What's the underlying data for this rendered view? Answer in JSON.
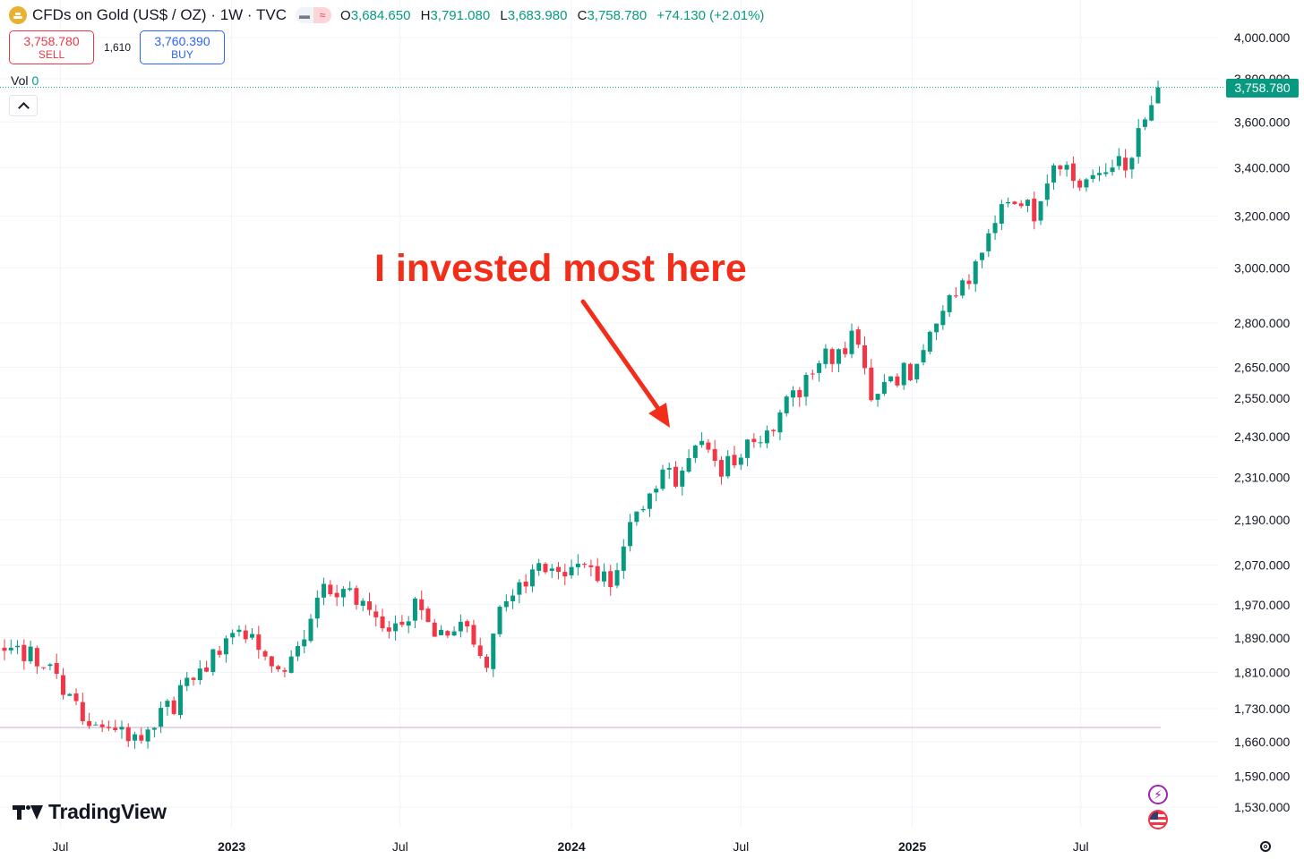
{
  "header": {
    "title": "CFDs on Gold (US$ / OZ) · 1W · TVC",
    "pill_left": "▬",
    "pill_right": "≈",
    "ohlc": [
      {
        "key": "O",
        "value": "3,684.650"
      },
      {
        "key": "H",
        "value": "3,791.080"
      },
      {
        "key": "L",
        "value": "3,683.980"
      },
      {
        "key": "C",
        "value": "3,758.780"
      }
    ],
    "change": "+74.130 (+2.01%)"
  },
  "trade": {
    "sell_price": "3,758.780",
    "sell_label": "SELL",
    "spread": "1,610",
    "buy_price": "3,760.390",
    "buy_label": "BUY"
  },
  "volume": {
    "label": "Vol",
    "value": "0"
  },
  "price_tag": "3,758.780",
  "annotation": "I invested most here",
  "logo_text": "TradingView",
  "colors": {
    "up": "#089981",
    "down": "#f23645",
    "annotation": "#f22e1a",
    "grid": "#f0f3fa"
  },
  "icons": {
    "collapse": "chevron-up-icon",
    "event1": "lightning-icon",
    "event2": "us-flag-icon",
    "settings": "gear-icon"
  },
  "chart_data": {
    "type": "candlestick",
    "interval": "1W",
    "scale": "log",
    "ylim": [
      1500,
      4250
    ],
    "y_ticks": [
      "4,000.000",
      "3,800.000",
      "3,600.000",
      "3,400.000",
      "3,200.000",
      "3,000.000",
      "2,800.000",
      "2,650.000",
      "2,550.000",
      "2,430.000",
      "2,310.000",
      "2,190.000",
      "2,070.000",
      "1,970.000",
      "1,890.000",
      "1,810.000",
      "1,730.000",
      "1,660.000",
      "1,590.000",
      "1,530.000"
    ],
    "y_tick_values": [
      4000,
      3800,
      3600,
      3400,
      3200,
      3000,
      2800,
      2650,
      2550,
      2430,
      2310,
      2190,
      2070,
      1970,
      1890,
      1810,
      1730,
      1660,
      1590,
      1530
    ],
    "x_ticks": [
      {
        "label": "Jul",
        "bold": false
      },
      {
        "label": "2023",
        "bold": true
      },
      {
        "label": "Jul",
        "bold": false
      },
      {
        "label": "2024",
        "bold": true
      },
      {
        "label": "Jul",
        "bold": false
      },
      {
        "label": "2025",
        "bold": true
      },
      {
        "label": "Jul",
        "bold": false
      }
    ],
    "x_range": [
      "2022-05-02",
      "2025-09-22"
    ],
    "x_tick_dates": [
      "2022-07-01",
      "2023-01-01",
      "2023-07-01",
      "2024-01-01",
      "2024-07-01",
      "2025-01-01",
      "2025-07-01"
    ],
    "anchors": [
      {
        "date": "2022-05-02",
        "close": 1860
      },
      {
        "date": "2022-06-06",
        "close": 1850
      },
      {
        "date": "2022-07-18",
        "close": 1730
      },
      {
        "date": "2022-09-26",
        "close": 1660
      },
      {
        "date": "2022-11-07",
        "close": 1760
      },
      {
        "date": "2023-01-09",
        "close": 1920
      },
      {
        "date": "2023-02-27",
        "close": 1815
      },
      {
        "date": "2023-04-10",
        "close": 2000
      },
      {
        "date": "2023-05-08",
        "close": 2010
      },
      {
        "date": "2023-06-19",
        "close": 1920
      },
      {
        "date": "2023-07-17",
        "close": 1960
      },
      {
        "date": "2023-08-14",
        "close": 1890
      },
      {
        "date": "2023-09-11",
        "close": 1920
      },
      {
        "date": "2023-10-02",
        "close": 1830
      },
      {
        "date": "2023-10-16",
        "close": 1980
      },
      {
        "date": "2023-11-27",
        "close": 2070
      },
      {
        "date": "2023-12-25",
        "close": 2060
      },
      {
        "date": "2024-02-12",
        "close": 2020
      },
      {
        "date": "2024-03-04",
        "close": 2180
      },
      {
        "date": "2024-04-08",
        "close": 2340
      },
      {
        "date": "2024-04-29",
        "close": 2300
      },
      {
        "date": "2024-05-13",
        "close": 2410
      },
      {
        "date": "2024-06-10",
        "close": 2320
      },
      {
        "date": "2024-07-08",
        "close": 2400
      },
      {
        "date": "2024-08-12",
        "close": 2500
      },
      {
        "date": "2024-09-23",
        "close": 2660
      },
      {
        "date": "2024-10-28",
        "close": 2750
      },
      {
        "date": "2024-11-18",
        "close": 2570
      },
      {
        "date": "2024-12-30",
        "close": 2640
      },
      {
        "date": "2025-01-27",
        "close": 2800
      },
      {
        "date": "2025-03-10",
        "close": 2990
      },
      {
        "date": "2025-04-14",
        "close": 3300
      },
      {
        "date": "2025-05-12",
        "close": 3200
      },
      {
        "date": "2025-06-02",
        "close": 3380
      },
      {
        "date": "2025-07-14",
        "close": 3340
      },
      {
        "date": "2025-08-25",
        "close": 3450
      },
      {
        "date": "2025-09-22",
        "close": 3758.78
      }
    ],
    "last": {
      "open": 3684.65,
      "high": 3791.08,
      "low": 3683.98,
      "close": 3758.78
    },
    "ref_line": 1690
  }
}
